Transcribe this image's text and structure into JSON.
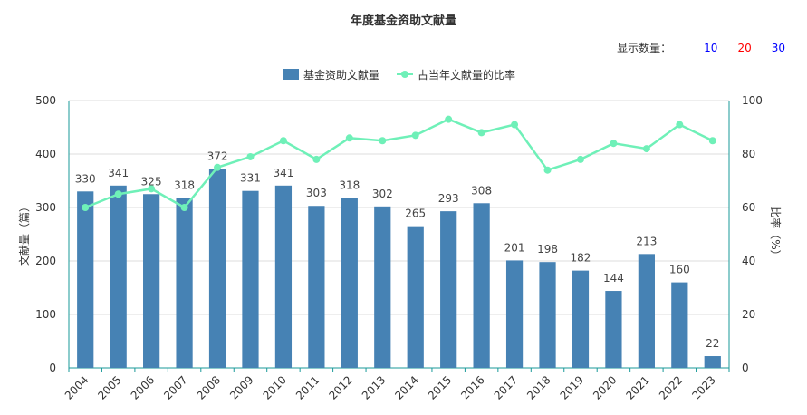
{
  "header": {
    "display_count_label": "显示数量：",
    "display_options": [
      {
        "label": "10",
        "color": "#0000ff"
      },
      {
        "label": "20",
        "color": "#ff0000"
      },
      {
        "label": "30",
        "color": "#0000ff"
      }
    ]
  },
  "chart_data": {
    "type": "bar",
    "title": "年度基金资助文献量",
    "categories": [
      "2004",
      "2005",
      "2006",
      "2007",
      "2008",
      "2009",
      "2010",
      "2011",
      "2012",
      "2013",
      "2014",
      "2015",
      "2016",
      "2017",
      "2018",
      "2019",
      "2020",
      "2021",
      "2022",
      "2023"
    ],
    "series": [
      {
        "name": "基金资助文献量",
        "type": "bar",
        "axis": "left",
        "color": "#4682b4",
        "values": [
          330,
          341,
          325,
          318,
          372,
          331,
          341,
          303,
          318,
          302,
          265,
          293,
          308,
          201,
          198,
          182,
          144,
          213,
          160,
          22
        ]
      },
      {
        "name": "占当年文献量的比率",
        "type": "line",
        "axis": "right",
        "color": "#6ff0b8",
        "values": [
          60,
          65,
          67,
          60,
          75,
          79,
          85,
          78,
          86,
          85,
          87,
          93,
          88,
          91,
          74,
          78,
          84,
          82,
          91,
          85
        ]
      }
    ],
    "ylabel": "文献量（篇）",
    "y2label": "比率（%）",
    "ylim": [
      0,
      500
    ],
    "y2lim": [
      0,
      100
    ],
    "yticks": [
      "0",
      "100",
      "200",
      "300",
      "400",
      "500"
    ],
    "y2ticks": [
      "0",
      "20",
      "40",
      "60",
      "80",
      "100"
    ],
    "grid": true,
    "legend_position": "top-center"
  }
}
